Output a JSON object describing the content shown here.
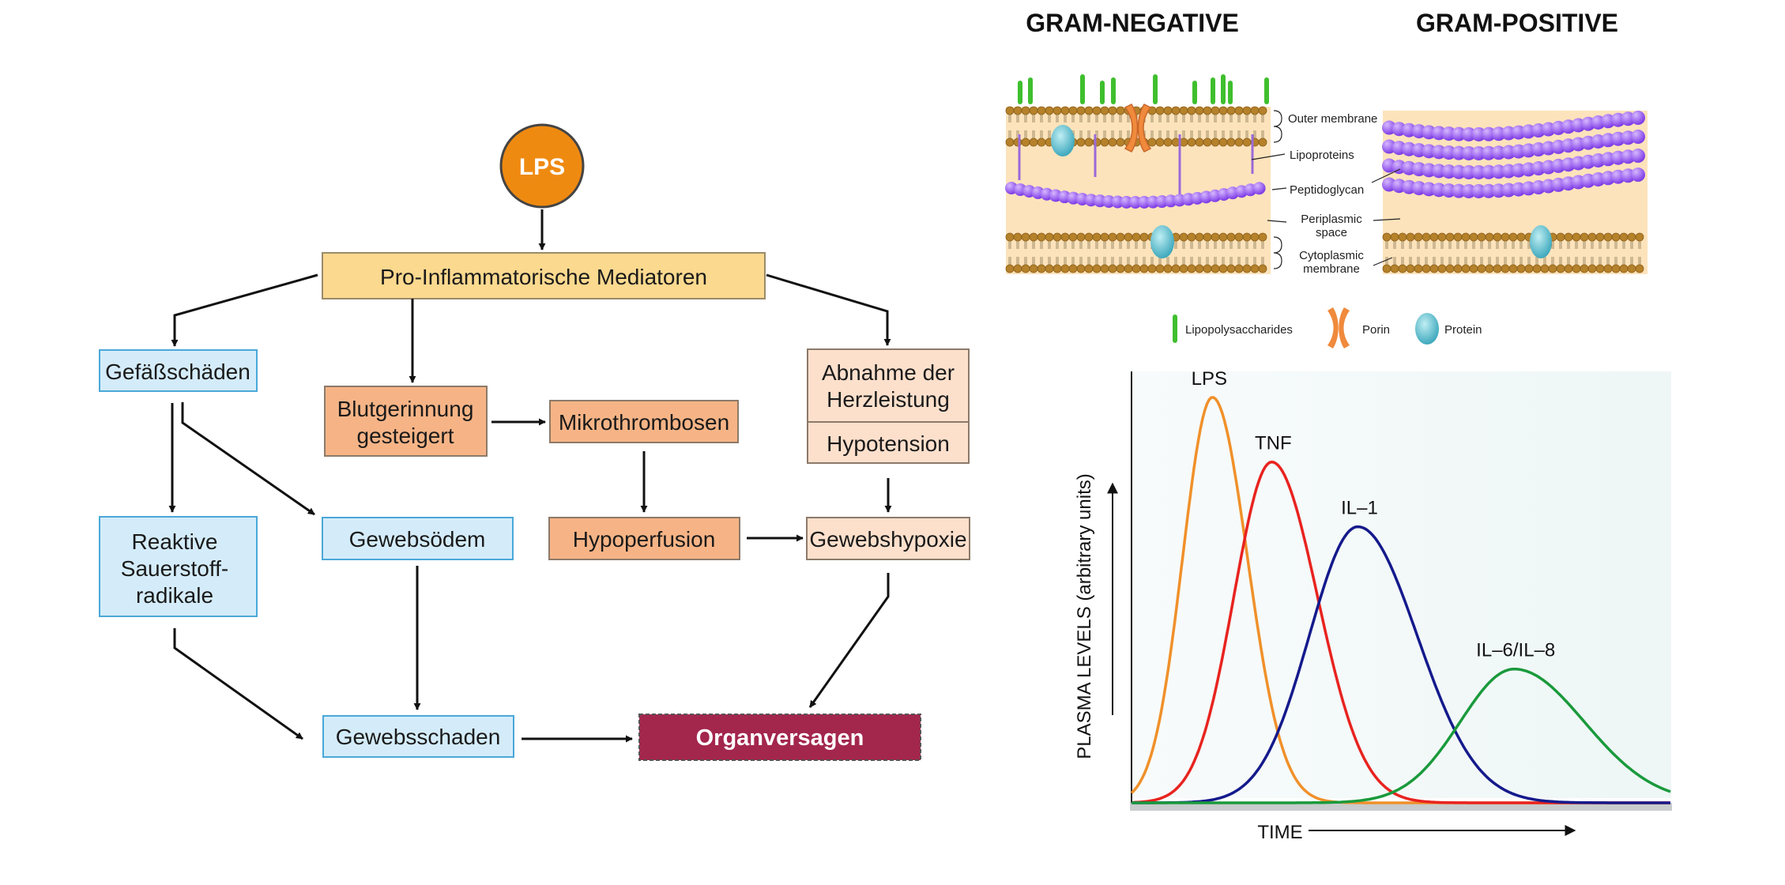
{
  "flowchart": {
    "lps": "LPS",
    "mediatoren": "Pro-Inflammatorische Mediatoren",
    "gefaess": "Gefäßschäden",
    "blutgerinnung": [
      "Blutgerinnung",
      "gesteigert"
    ],
    "mikrothrombosen": "Mikrothrombosen",
    "herzleistung": [
      "Abnahme der",
      "Herzleistung"
    ],
    "hypotension": "Hypotension",
    "sauerstoff": [
      "Reaktive",
      "Sauerstoff-",
      "radikale"
    ],
    "gewebsoedem": "Gewebsödem",
    "hypoperfusion": "Hypoperfusion",
    "gewebshypoxie": "Gewebshypoxie",
    "gewebsschaden": "Gewebsschaden",
    "organversagen": "Organversagen",
    "colors": {
      "lps_fill": "#ef8a11",
      "mediator_fill": "#fbd98f",
      "blue_fill": "#d4ecfa",
      "blue_stroke": "#4aa8d8",
      "orange_fill": "#f6b486",
      "peach_fill": "#fde0cc",
      "organ_fill": "#a3264d"
    }
  },
  "bacteria": {
    "gram_negative_title": "GRAM-NEGATIVE",
    "gram_positive_title": "GRAM-POSITIVE",
    "labels": {
      "outer_membrane": "Outer membrane",
      "lipoproteins": "Lipoproteins",
      "peptidoglycan": "Peptidoglycan",
      "periplasmic": [
        "Periplasmic",
        "space"
      ],
      "cytoplasmic": [
        "Cytoplasmic",
        "membrane"
      ]
    },
    "legend": {
      "lipopolysaccharides": "Lipopolysaccharides",
      "porin": "Porin",
      "protein": "Protein"
    },
    "icons": [
      "lipopolysaccharide-icon",
      "porin-icon",
      "protein-icon"
    ],
    "colors": {
      "periplasm": "#fde3bb",
      "lipid_head": "#b5812a",
      "peptidoglycan": "#9b5ff0",
      "lps": "#3fbf2e",
      "porin": "#f08a3c",
      "protein": "#5ec4d3"
    }
  },
  "chart_data": {
    "type": "line",
    "xlabel": "TIME",
    "ylabel": "PLASMA LEVELS (arbitrary units)",
    "series": [
      {
        "name": "LPS",
        "color": "#f0902a",
        "peak_x": 0.15,
        "peak_y": 0.94,
        "rise": 0.055,
        "fall": 0.065
      },
      {
        "name": "TNF",
        "color": "#e8231f",
        "peak_x": 0.26,
        "peak_y": 0.79,
        "rise": 0.07,
        "fall": 0.085
      },
      {
        "name": "IL–1",
        "color": "#141a8c",
        "peak_x": 0.42,
        "peak_y": 0.64,
        "rise": 0.09,
        "fall": 0.11
      },
      {
        "name": "IL–6/IL–8",
        "color": "#1a9a3c",
        "peak_x": 0.71,
        "peak_y": 0.31,
        "rise": 0.1,
        "fall": 0.13
      }
    ]
  }
}
